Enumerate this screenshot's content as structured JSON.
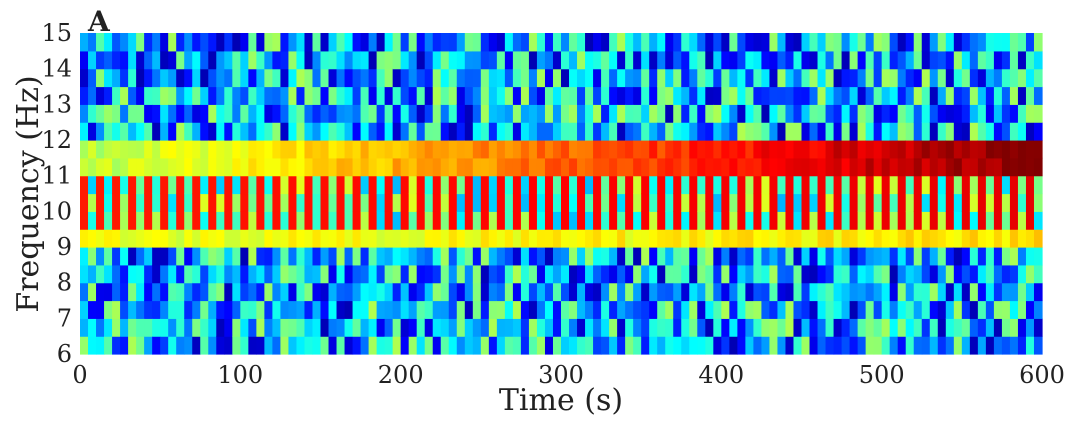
{
  "chart_data": {
    "type": "heatmap",
    "panel_label": "A",
    "title": "",
    "xlabel": "Time (s)",
    "ylabel": "Frequency (Hz)",
    "xlim": [
      0,
      600
    ],
    "ylim": [
      6,
      15
    ],
    "xticks": [
      "0",
      "100",
      "200",
      "300",
      "400",
      "500",
      "600"
    ],
    "yticks": [
      "6",
      "7",
      "8",
      "9",
      "10",
      "11",
      "12",
      "13",
      "14",
      "15"
    ],
    "grid": false,
    "colormap": "jet",
    "time_bins": 120,
    "frequency_bins": [
      6.0,
      6.5,
      7.0,
      7.5,
      8.0,
      8.5,
      9.0,
      9.5,
      10.0,
      10.5,
      11.0,
      11.5,
      12.0,
      12.5,
      13.0,
      13.5,
      14.0,
      14.5
    ],
    "background_level": 0.3,
    "bands": [
      {
        "frequency_range": [
          11.0,
          12.0
        ],
        "level_start": 0.55,
        "level_end": 1.0,
        "description": "steady component rising in power over time"
      },
      {
        "frequency_range": [
          9.5,
          11.0
        ],
        "level_start": 0.85,
        "level_end": 0.9,
        "description": "alternating on/off component"
      },
      {
        "frequency_range": [
          9.0,
          9.5
        ],
        "level_start": 0.6,
        "level_end": 0.65,
        "description": "weak sideband"
      }
    ]
  }
}
